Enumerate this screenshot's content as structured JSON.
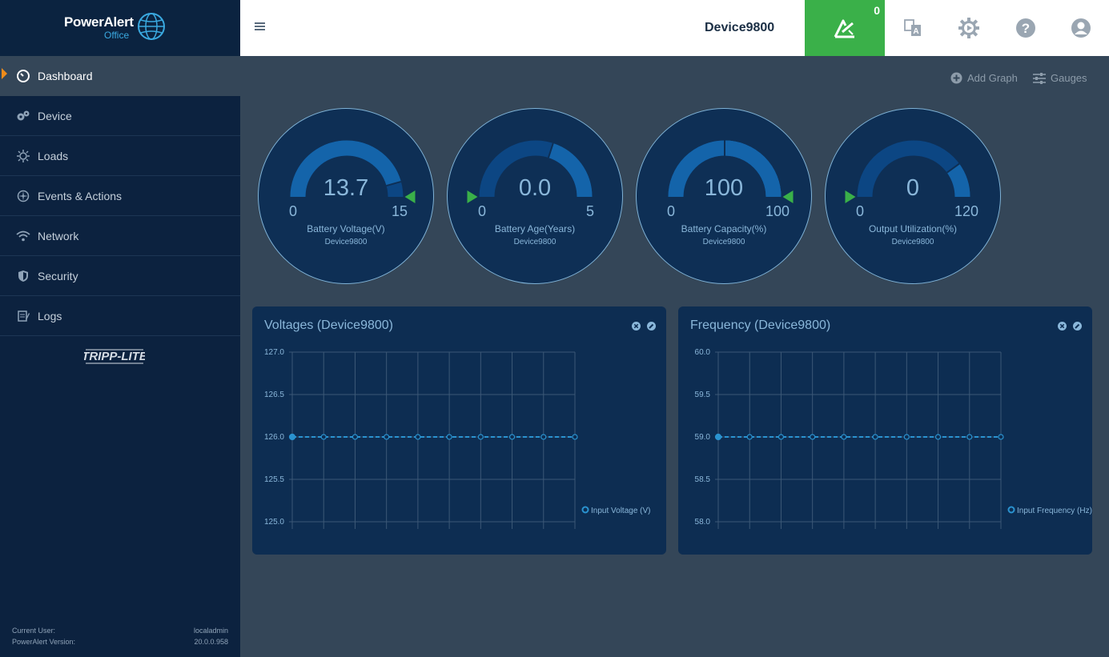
{
  "app": {
    "logo_text": "PowerAlert",
    "logo_sub": "Office",
    "tripp_logo": "TRIPP-LITE"
  },
  "sidebar": {
    "items": [
      {
        "label": "Dashboard",
        "icon": "dashboard-icon",
        "active": true
      },
      {
        "label": "Device",
        "icon": "gears-icon"
      },
      {
        "label": "Loads",
        "icon": "loads-icon"
      },
      {
        "label": "Events & Actions",
        "icon": "events-icon"
      },
      {
        "label": "Network",
        "icon": "wifi-icon"
      },
      {
        "label": "Security",
        "icon": "shield-icon"
      },
      {
        "label": "Logs",
        "icon": "logs-icon"
      }
    ],
    "footer": {
      "user_label": "Current User:",
      "user_value": "localadmin",
      "version_label": "PowerAlert Version:",
      "version_value": "20.0.0.958"
    }
  },
  "header": {
    "device_name": "Device9800",
    "alert_count": "0"
  },
  "toolbar": {
    "add_graph": "Add Graph",
    "gauges": "Gauges"
  },
  "gauges": [
    {
      "value": "13.7",
      "min": "0",
      "max": "15",
      "label": "Battery Voltage(V)",
      "device": "Device9800",
      "fraction": 0.913,
      "marker_fraction": 1.0
    },
    {
      "value": "0.0",
      "min": "0",
      "max": "5",
      "label": "Battery Age(Years)",
      "device": "Device9800",
      "fraction": 0.0,
      "marker_fraction": 0.0,
      "band_fraction": 0.6
    },
    {
      "value": "100",
      "min": "0",
      "max": "100",
      "label": "Battery Capacity(%)",
      "device": "Device9800",
      "fraction": 1.0,
      "marker_fraction": 1.0,
      "band_fraction": 0.5
    },
    {
      "value": "0",
      "min": "0",
      "max": "120",
      "label": "Output Utilization(%)",
      "device": "Device9800",
      "fraction": 0.0,
      "marker_fraction": 0.0,
      "band_fraction": 0.8
    }
  ],
  "colors": {
    "accent_green": "#3ab049",
    "gauge_fill": "#1464aa",
    "gauge_track": "#0c4683",
    "chart_line": "#2a93d0"
  },
  "chart_data": [
    {
      "type": "line",
      "title": "Voltages (Device9800)",
      "xlabel": "",
      "ylabel": "",
      "ylim": [
        125.0,
        127.0
      ],
      "yticks": [
        "127.0",
        "126.5",
        "126.0",
        "125.5",
        "125.0"
      ],
      "grid": true,
      "legend": "right",
      "series": [
        {
          "name": "Input Voltage (V)",
          "values": [
            126.0,
            126.0,
            126.0,
            126.0,
            126.0,
            126.0,
            126.0,
            126.0,
            126.0,
            126.0
          ]
        }
      ]
    },
    {
      "type": "line",
      "title": "Frequency (Device9800)",
      "xlabel": "",
      "ylabel": "",
      "ylim": [
        58.0,
        60.0
      ],
      "yticks": [
        "60.0",
        "59.5",
        "59.0",
        "58.5",
        "58.0"
      ],
      "grid": true,
      "legend": "right",
      "series": [
        {
          "name": "Input Frequency (Hz)",
          "values": [
            59.0,
            59.0,
            59.0,
            59.0,
            59.0,
            59.0,
            59.0,
            59.0,
            59.0,
            59.0
          ]
        }
      ]
    }
  ]
}
